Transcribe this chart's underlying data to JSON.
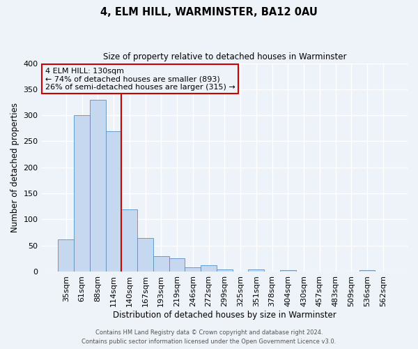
{
  "title": "4, ELM HILL, WARMINSTER, BA12 0AU",
  "subtitle": "Size of property relative to detached houses in Warminster",
  "xlabel": "Distribution of detached houses by size in Warminster",
  "ylabel": "Number of detached properties",
  "bin_labels": [
    "35sqm",
    "61sqm",
    "88sqm",
    "114sqm",
    "140sqm",
    "167sqm",
    "193sqm",
    "219sqm",
    "246sqm",
    "272sqm",
    "299sqm",
    "325sqm",
    "351sqm",
    "378sqm",
    "404sqm",
    "430sqm",
    "457sqm",
    "483sqm",
    "509sqm",
    "536sqm",
    "562sqm"
  ],
  "bar_heights": [
    62,
    300,
    330,
    270,
    119,
    64,
    30,
    25,
    8,
    12,
    4,
    0,
    4,
    0,
    3,
    0,
    0,
    0,
    0,
    3,
    0
  ],
  "bar_color": "#c5d8f0",
  "bar_edge_color": "#5a8fc0",
  "vline_color": "#cc0000",
  "annotation_title": "4 ELM HILL: 130sqm",
  "annotation_line1": "← 74% of detached houses are smaller (893)",
  "annotation_line2": "26% of semi-detached houses are larger (315) →",
  "annotation_box_edgecolor": "#cc0000",
  "ylim": [
    0,
    400
  ],
  "yticks": [
    0,
    50,
    100,
    150,
    200,
    250,
    300,
    350,
    400
  ],
  "footer1": "Contains HM Land Registry data © Crown copyright and database right 2024.",
  "footer2": "Contains public sector information licensed under the Open Government Licence v3.0.",
  "background_color": "#eef2f9",
  "grid_color": "#ffffff"
}
